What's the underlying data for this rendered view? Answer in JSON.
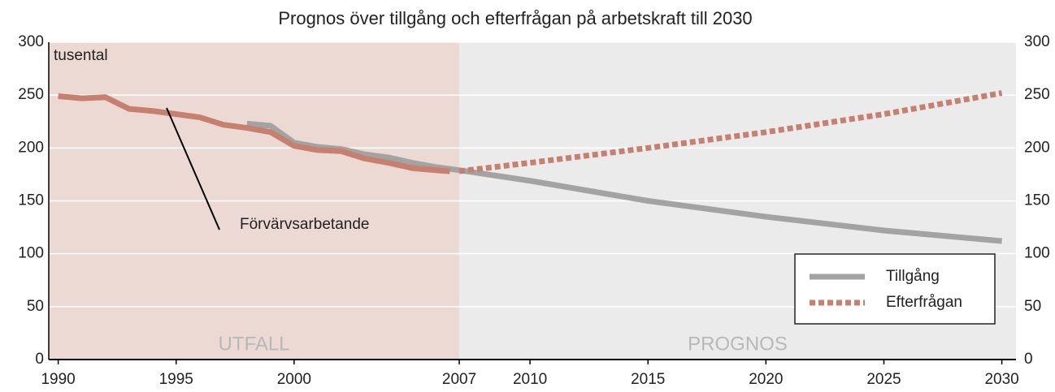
{
  "chart_data": {
    "type": "line",
    "title": "Prognos över tillgång och efterfrågan på arbetskraft till 2030",
    "y_label": "tusental",
    "regions": [
      {
        "label": "UTFALL",
        "from": 1989.6,
        "to": 2007,
        "color": "#ecd9d4"
      },
      {
        "label": "PROGNOS",
        "from": 2007,
        "to": 2030.6,
        "color": "#ebebeb"
      }
    ],
    "series": [
      {
        "name": "Förvärvsarbetande",
        "color": "#c7806f",
        "style": "solid",
        "x": [
          1990,
          1991,
          1992,
          1993,
          1994,
          1995,
          1996,
          1997,
          1998,
          1999,
          2000,
          2001,
          2002,
          2003,
          2004,
          2005,
          2006,
          2006.6
        ],
        "values": [
          249,
          247,
          248,
          237,
          235,
          232,
          229,
          222,
          219,
          215,
          202,
          198,
          197,
          190,
          186,
          181,
          179,
          178
        ]
      },
      {
        "name": "Tillgång",
        "color": "#a3a3a3",
        "style": "solid",
        "x": [
          1998,
          1999,
          2000,
          2001,
          2002,
          2003,
          2004,
          2005,
          2006,
          2007,
          2010,
          2015,
          2020,
          2025,
          2030
        ],
        "values": [
          223,
          221,
          205,
          201,
          199,
          194,
          191,
          186,
          182,
          179,
          169,
          150,
          135,
          122,
          112
        ]
      },
      {
        "name": "Efterfrågan",
        "color": "#c7806f",
        "style": "dotted",
        "x": [
          2007,
          2010,
          2015,
          2020,
          2025,
          2030
        ],
        "values": [
          178,
          186,
          200,
          215,
          232,
          252
        ]
      }
    ],
    "xlim": [
      1989.6,
      2030.6
    ],
    "xticks": [
      1990,
      1995,
      2000,
      2007,
      2010,
      2015,
      2020,
      2025,
      2030
    ],
    "ylim": [
      0,
      300
    ],
    "yticks": [
      0,
      50,
      100,
      150,
      200,
      250,
      300
    ],
    "y2lim": [
      0,
      300
    ],
    "y2ticks": [
      0,
      50,
      100,
      150,
      200,
      250,
      300
    ],
    "grid": true,
    "legend": "lower right"
  }
}
